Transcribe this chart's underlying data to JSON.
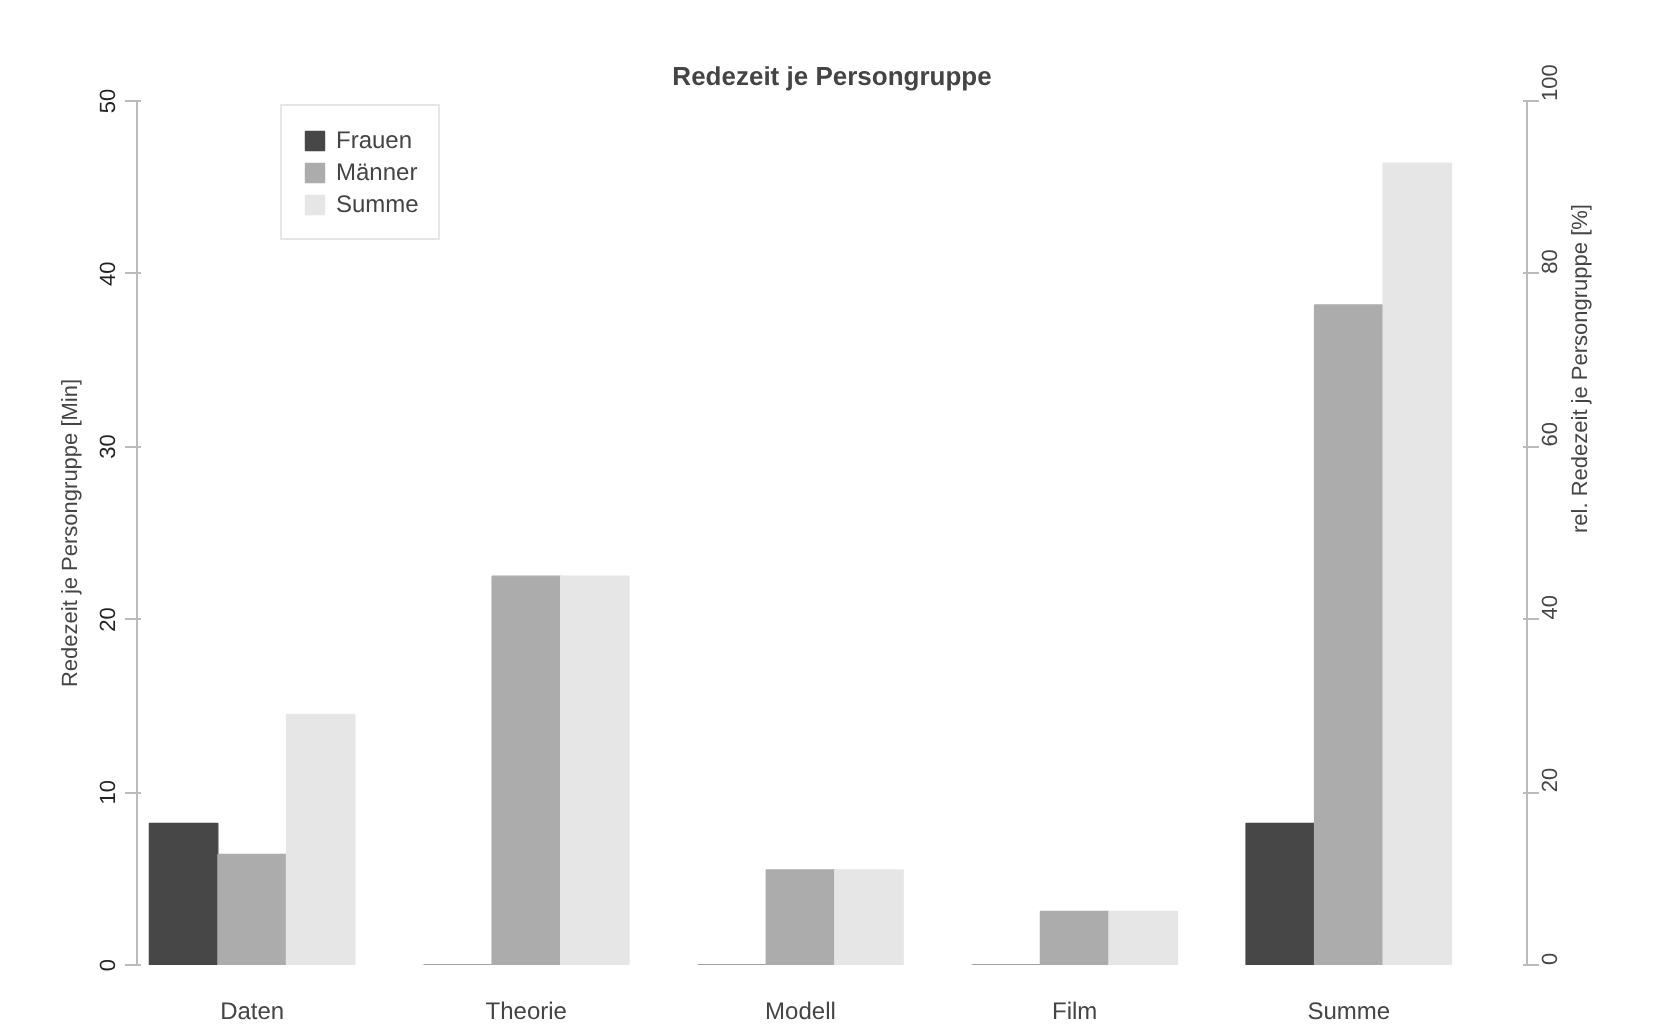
{
  "chart_data": {
    "type": "bar",
    "title": "Redezeit je Persongruppe",
    "categories": [
      "Daten",
      "Theorie",
      "Modell",
      "Film",
      "Summe"
    ],
    "series": [
      {
        "name": "Frauen",
        "color": "#474747",
        "values": [
          8.2,
          0,
          0,
          0,
          8.2
        ]
      },
      {
        "name": "Männer",
        "color": "#acacac",
        "values": [
          6.4,
          22.5,
          5.5,
          3.1,
          38.2
        ]
      },
      {
        "name": "Summe",
        "color": "#e6e6e6",
        "values": [
          14.5,
          22.5,
          5.5,
          3.1,
          46.4
        ]
      }
    ],
    "ylabel": "Redezeit je Persongruppe [Min]",
    "y2label": "rel. Redezeit je Persongruppe [%]",
    "ylim": [
      0,
      50
    ],
    "yticks": [
      0,
      10,
      20,
      30,
      40,
      50
    ],
    "y2lim": [
      0,
      100
    ],
    "y2ticks": [
      0,
      20,
      40,
      60,
      80,
      100
    ],
    "legend": "top left",
    "grid": false
  }
}
